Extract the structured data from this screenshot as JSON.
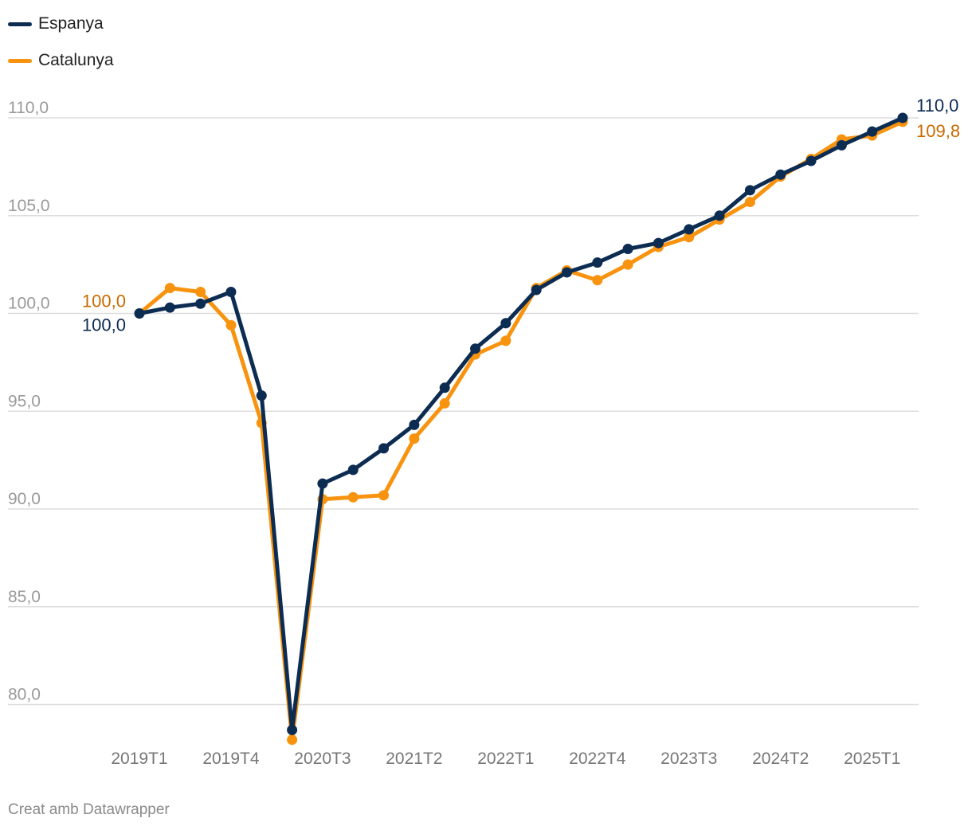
{
  "legend": [
    {
      "name": "Espanya",
      "color": "#0c2c52"
    },
    {
      "name": "Catalunya",
      "color": "#f8930f"
    }
  ],
  "credit": "Creat amb Datawrapper",
  "colors": {
    "espanya": "#0c2c52",
    "catalunya": "#f8930f",
    "catalunya_label": "#c96a00",
    "grid": "#dddddd",
    "tick_text": "#9a9a9a",
    "x_tick_text": "#777777"
  },
  "chart_data": {
    "type": "line",
    "ylim": [
      79,
      111
    ],
    "y_ticks": [
      80,
      85,
      90,
      95,
      100,
      105,
      110
    ],
    "y_tick_labels": [
      "80,0",
      "85,0",
      "90,0",
      "95,0",
      "100,0",
      "105,0",
      "110,0"
    ],
    "x": [
      "2019T1",
      "2019T2",
      "2019T3",
      "2019T4",
      "2020T1",
      "2020T2",
      "2020T3",
      "2020T4",
      "2021T1",
      "2021T2",
      "2021T3",
      "2021T4",
      "2022T1",
      "2022T2",
      "2022T3",
      "2022T4",
      "2023T1",
      "2023T2",
      "2023T3",
      "2023T4",
      "2024T1",
      "2024T2",
      "2024T3",
      "2024T4",
      "2025T1",
      "2025T2"
    ],
    "x_tick_labels": [
      "2019T1",
      "2019T4",
      "2020T3",
      "2021T2",
      "2022T1",
      "2022T4",
      "2023T3",
      "2024T2",
      "2025T1"
    ],
    "grid": true,
    "legend_position": "top-left",
    "series": [
      {
        "name": "Catalunya",
        "values": [
          100.0,
          101.3,
          101.1,
          99.4,
          94.4,
          78.2,
          90.5,
          90.6,
          90.7,
          93.6,
          95.4,
          97.9,
          98.6,
          101.3,
          102.2,
          101.7,
          102.5,
          103.4,
          103.9,
          104.8,
          105.7,
          107.0,
          107.9,
          108.9,
          109.1,
          109.8
        ],
        "start_label": "100,0",
        "end_label": "109,8"
      },
      {
        "name": "Espanya",
        "values": [
          100.0,
          100.3,
          100.5,
          101.1,
          95.8,
          78.7,
          91.3,
          92.0,
          93.1,
          94.3,
          96.2,
          98.2,
          99.5,
          101.2,
          102.1,
          102.6,
          103.3,
          103.6,
          104.3,
          105.0,
          106.3,
          107.1,
          107.8,
          108.6,
          109.3,
          110.0
        ],
        "start_label": "100,0",
        "end_label": "110,0"
      }
    ]
  }
}
